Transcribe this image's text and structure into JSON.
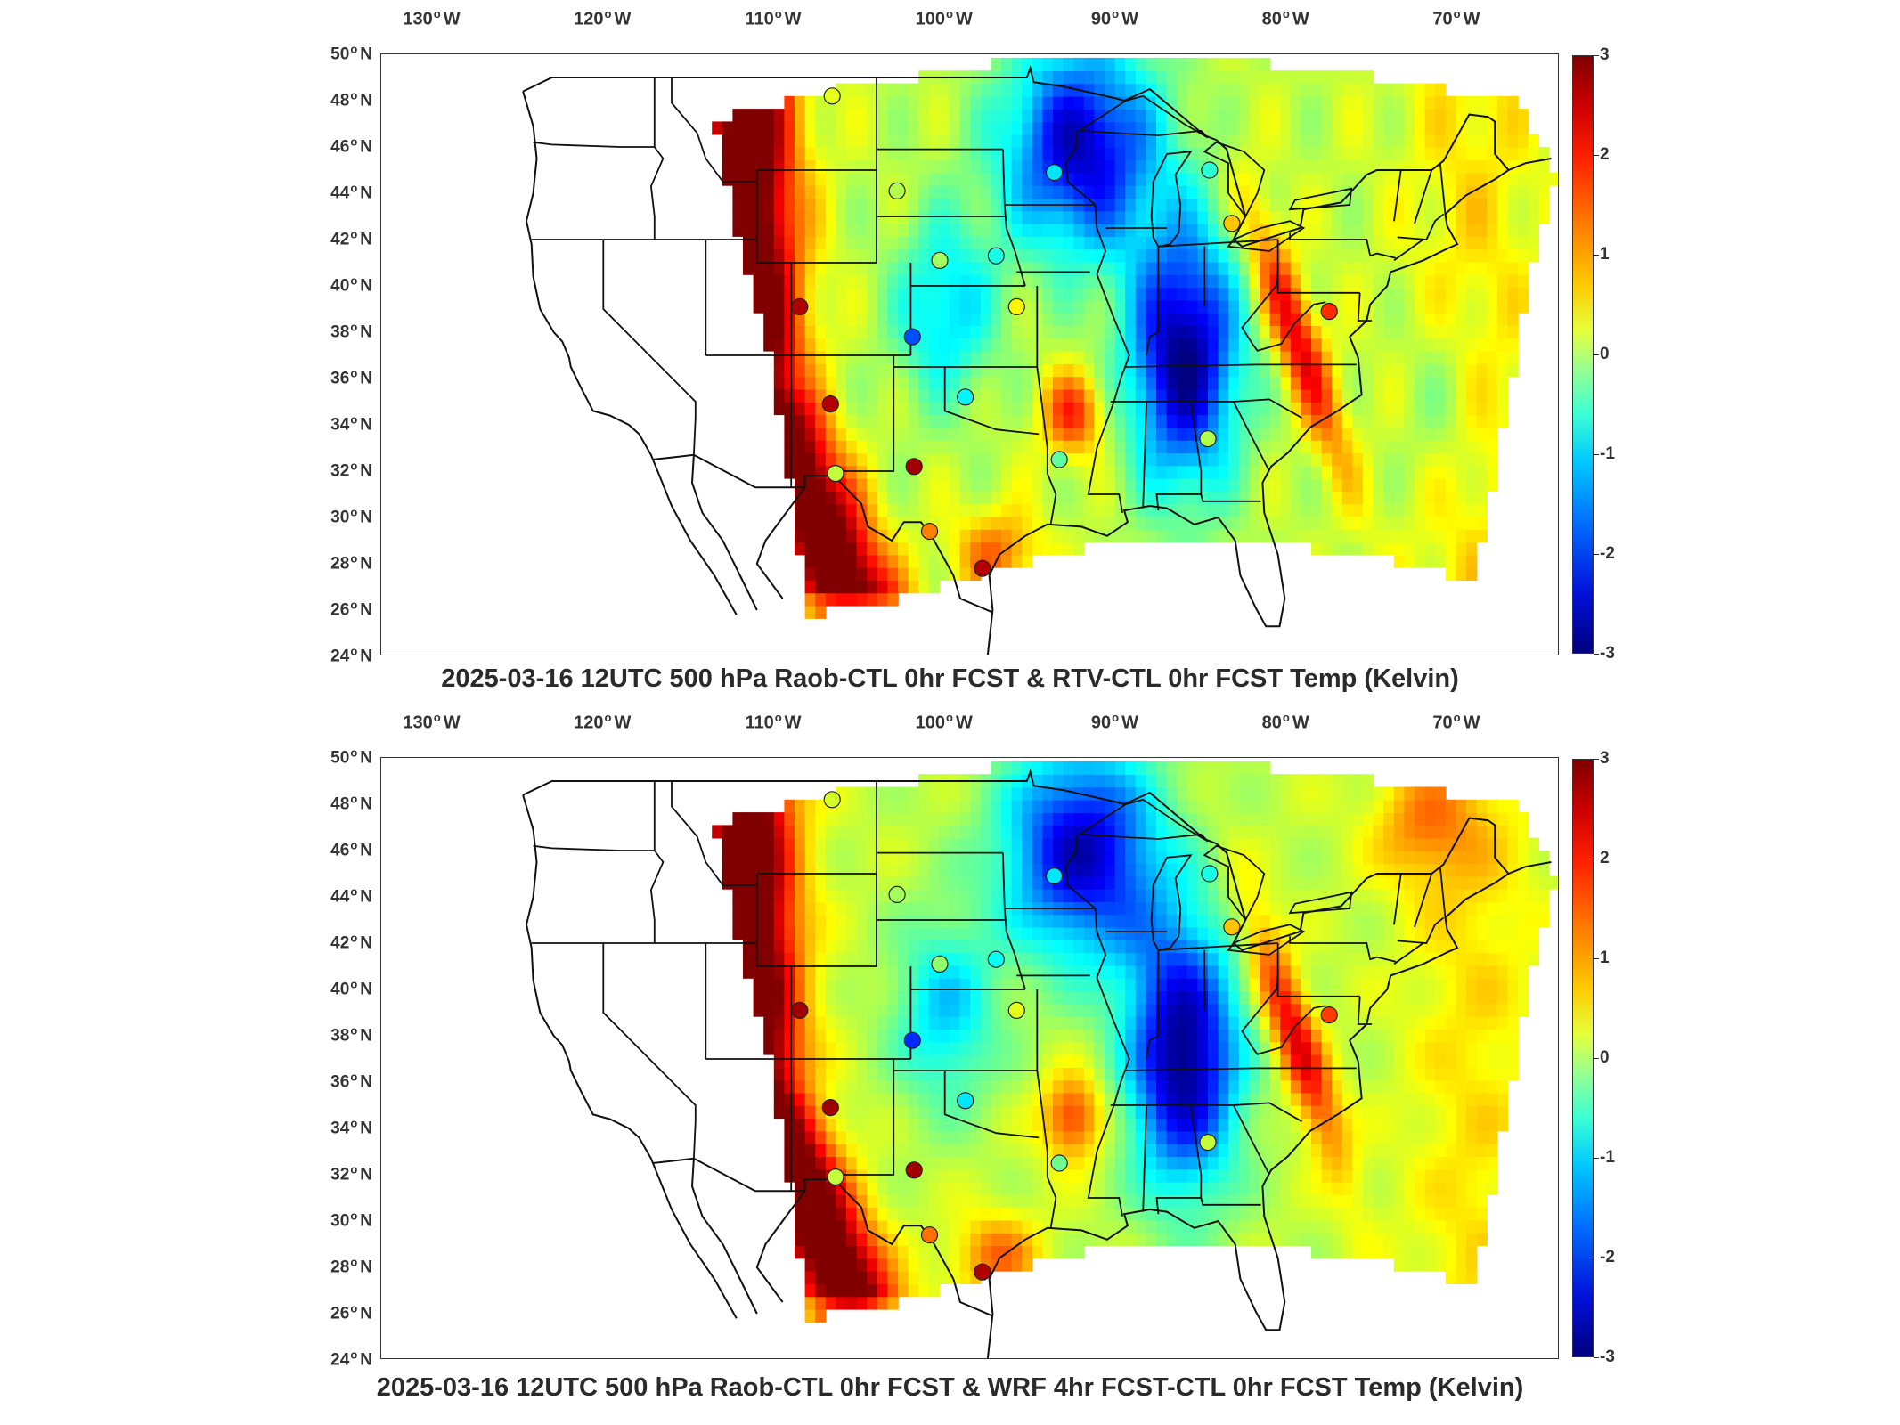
{
  "panels": [
    {
      "title": "2025-03-16 12UTC 500 hPa Raob-CTL 0hr FCST & RTV-CTL 0hr FCST Temp (Kelvin)",
      "variant": "rtv"
    },
    {
      "title": "2025-03-16 12UTC 500 hPa Raob-CTL 0hr FCST & WRF 4hr FCST-CTL 0hr FCST Temp (Kelvin)",
      "variant": "wrf"
    }
  ],
  "lon_labels": [
    {
      "deg": "130",
      "hemi": "W"
    },
    {
      "deg": "120",
      "hemi": "W"
    },
    {
      "deg": "110",
      "hemi": "W"
    },
    {
      "deg": "100",
      "hemi": "W"
    },
    {
      "deg": "90",
      "hemi": "W"
    },
    {
      "deg": "80",
      "hemi": "W"
    },
    {
      "deg": "70",
      "hemi": "W"
    }
  ],
  "lat_labels": [
    {
      "deg": "50",
      "hemi": "N"
    },
    {
      "deg": "48",
      "hemi": "N"
    },
    {
      "deg": "46",
      "hemi": "N"
    },
    {
      "deg": "44",
      "hemi": "N"
    },
    {
      "deg": "42",
      "hemi": "N"
    },
    {
      "deg": "40",
      "hemi": "N"
    },
    {
      "deg": "38",
      "hemi": "N"
    },
    {
      "deg": "36",
      "hemi": "N"
    },
    {
      "deg": "34",
      "hemi": "N"
    },
    {
      "deg": "32",
      "hemi": "N"
    },
    {
      "deg": "30",
      "hemi": "N"
    },
    {
      "deg": "28",
      "hemi": "N"
    },
    {
      "deg": "26",
      "hemi": "N"
    },
    {
      "deg": "24",
      "hemi": "N"
    }
  ],
  "colorbar": {
    "min": -3,
    "max": 3,
    "ticks": [
      "3",
      "2",
      "1",
      "0",
      "-1",
      "-2",
      "-3"
    ],
    "colormap": "jet",
    "colors": [
      "#7f0000",
      "#ff2000",
      "#ffc800",
      "#9dff8c",
      "#00c8ff",
      "#0010d8",
      "#00007f"
    ]
  },
  "map": {
    "lon_range": [
      -133,
      -64
    ],
    "lat_range": [
      24,
      50
    ],
    "stations": [
      {
        "name": "station",
        "lon": -106.6,
        "lat": 48.2,
        "value_rtv": 0.6,
        "value_wrf": 0.5
      },
      {
        "name": "station",
        "lon": -102.8,
        "lat": 44.1,
        "value_rtv": 0.3,
        "value_wrf": 0.2
      },
      {
        "name": "station",
        "lon": -100.3,
        "lat": 41.1,
        "value_rtv": 0.2,
        "value_wrf": 0.1
      },
      {
        "name": "station",
        "lon": -97.0,
        "lat": 41.3,
        "value_rtv": -0.6,
        "value_wrf": -0.7
      },
      {
        "name": "station",
        "lon": -93.6,
        "lat": 44.9,
        "value_rtv": -0.9,
        "value_wrf": -0.9
      },
      {
        "name": "station",
        "lon": -95.8,
        "lat": 39.1,
        "value_rtv": 0.8,
        "value_wrf": 0.6
      },
      {
        "name": "station",
        "lon": -98.8,
        "lat": 35.2,
        "value_rtv": -0.8,
        "value_wrf": -0.9
      },
      {
        "name": "station",
        "lon": -93.3,
        "lat": 32.5,
        "value_rtv": -0.2,
        "value_wrf": -0.1
      },
      {
        "name": "station",
        "lon": -84.5,
        "lat": 45.0,
        "value_rtv": -0.5,
        "value_wrf": -0.6
      },
      {
        "name": "station",
        "lon": -83.2,
        "lat": 42.7,
        "value_rtv": 1.1,
        "value_wrf": 1.1
      },
      {
        "name": "station",
        "lon": -84.6,
        "lat": 33.4,
        "value_rtv": 0.3,
        "value_wrf": 0.4
      },
      {
        "name": "station",
        "lon": -77.5,
        "lat": 38.9,
        "value_rtv": 2.0,
        "value_wrf": 1.9
      },
      {
        "name": "station",
        "lon": -108.5,
        "lat": 39.1,
        "value_rtv": 2.7,
        "value_wrf": 2.8
      },
      {
        "name": "station",
        "lon": -106.7,
        "lat": 34.9,
        "value_rtv": 2.7,
        "value_wrf": 2.8
      },
      {
        "name": "station",
        "lon": -106.4,
        "lat": 31.9,
        "value_rtv": 0.4,
        "value_wrf": 0.4
      },
      {
        "name": "station",
        "lon": -101.8,
        "lat": 32.2,
        "value_rtv": 2.8,
        "value_wrf": 2.8
      },
      {
        "name": "station",
        "lon": -100.9,
        "lat": 29.4,
        "value_rtv": 1.5,
        "value_wrf": 1.6
      },
      {
        "name": "station",
        "lon": -97.8,
        "lat": 27.8,
        "value_rtv": 2.7,
        "value_wrf": 2.7
      },
      {
        "name": "station",
        "lon": -101.9,
        "lat": 37.8,
        "value_rtv": -1.8,
        "value_wrf": -2.0
      }
    ]
  }
}
